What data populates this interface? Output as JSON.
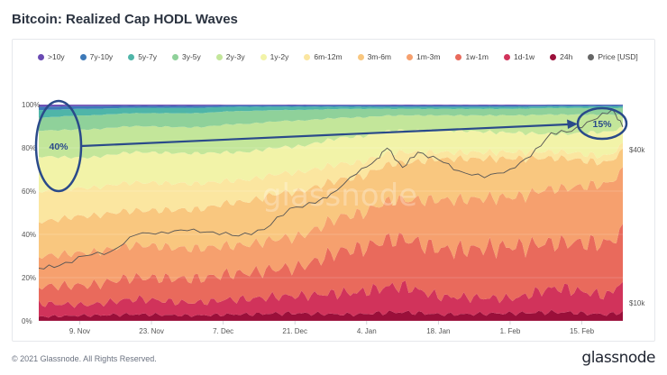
{
  "title": "Bitcoin: Realized Cap HODL Waves",
  "footer": "© 2021 Glassnode. All Rights Reserved.",
  "brand": "glassnode",
  "watermark": "glassnode",
  "legend": [
    {
      "label": ">10y",
      "color": "#6a4ab3"
    },
    {
      "label": "7y-10y",
      "color": "#3d79b8"
    },
    {
      "label": "5y-7y",
      "color": "#4fb5a8"
    },
    {
      "label": "3y-5y",
      "color": "#8fd19a"
    },
    {
      "label": "2y-3y",
      "color": "#c3e69a"
    },
    {
      "label": "1y-2y",
      "color": "#f2f3a8"
    },
    {
      "label": "6m-12m",
      "color": "#fbe6a0"
    },
    {
      "label": "3m-6m",
      "color": "#f9c77f"
    },
    {
      "label": "1m-3m",
      "color": "#f6a06e"
    },
    {
      "label": "1w-1m",
      "color": "#e96a5c"
    },
    {
      "label": "1d-1w",
      "color": "#d1335b"
    },
    {
      "label": "24h",
      "color": "#9b0f3a"
    },
    {
      "label": "Price [USD]",
      "color": "#666666"
    }
  ],
  "annotations": {
    "left_label": "40%",
    "right_label": "15%",
    "color": "#2a4a8a"
  },
  "chart_data": {
    "type": "area",
    "stacked": true,
    "title": "Bitcoin: Realized Cap HODL Waves",
    "x_tick_labels": [
      "9. Nov",
      "23. Nov",
      "7. Dec",
      "21. Dec",
      "4. Jan",
      "18. Jan",
      "1. Feb",
      "15. Feb"
    ],
    "x_range": [
      "2020-11-01",
      "2021-02-23"
    ],
    "y_left_ticks": [
      "0%",
      "20%",
      "40%",
      "60%",
      "80%",
      "100%"
    ],
    "y_left_range": [
      0,
      100
    ],
    "y_right_ticks": [
      "$10k",
      "$40k"
    ],
    "y_right_scale": "log",
    "y_right_range": [
      8500,
      60000
    ],
    "x": [
      "2020-11-01",
      "2020-11-10",
      "2020-11-20",
      "2020-12-01",
      "2020-12-10",
      "2020-12-20",
      "2021-01-01",
      "2021-01-10",
      "2021-01-20",
      "2021-02-01",
      "2021-02-10",
      "2021-02-20",
      "2021-02-23"
    ],
    "series": [
      {
        "name": "24h",
        "values": [
          2,
          2.5,
          3,
          2.5,
          3,
          3.5,
          3,
          4,
          3,
          3.5,
          4,
          3,
          4
        ]
      },
      {
        "name": "1d-1w",
        "values": [
          6,
          5,
          7,
          6,
          7,
          8,
          10,
          12,
          8,
          7,
          11,
          9,
          14
        ]
      },
      {
        "name": "1w-1m",
        "values": [
          8,
          9,
          10,
          11,
          12,
          13,
          20,
          22,
          22,
          24,
          21,
          24,
          23
        ]
      },
      {
        "name": "1m-3m",
        "values": [
          14,
          15,
          15,
          14,
          13,
          14,
          16,
          18,
          23,
          23,
          25,
          27,
          28
        ]
      },
      {
        "name": "3m-6m",
        "values": [
          16,
          17,
          16,
          18,
          20,
          21,
          17,
          17,
          19,
          18,
          14,
          10,
          9
        ]
      },
      {
        "name": "6m-12m",
        "values": [
          14,
          13,
          13,
          12,
          10,
          9,
          7,
          5,
          3,
          3,
          3,
          3,
          3
        ]
      },
      {
        "name": "1y-2y",
        "values": [
          16,
          14,
          14,
          14,
          13,
          12,
          12,
          10,
          10,
          9,
          8,
          11,
          8
        ]
      },
      {
        "name": "2y-3y",
        "values": [
          12,
          13,
          12,
          12,
          13,
          12,
          9,
          7,
          7,
          8,
          9,
          8,
          6
        ]
      },
      {
        "name": "3y-5y",
        "values": [
          6,
          6.5,
          6,
          6.5,
          6,
          5,
          4,
          3,
          3,
          3,
          3,
          3,
          3
        ]
      },
      {
        "name": "5y-7y",
        "values": [
          3.5,
          3,
          2.5,
          2.5,
          2,
          1.5,
          1,
          0.9,
          0.9,
          0.9,
          0.8,
          0.8,
          0.8
        ]
      },
      {
        "name": "7y-10y",
        "values": [
          1.5,
          1.3,
          0.9,
          0.9,
          0.7,
          0.6,
          0.7,
          0.7,
          0.7,
          0.7,
          0.6,
          0.6,
          0.6
        ]
      },
      {
        "name": ">10y",
        "values": [
          1,
          0.7,
          0.6,
          0.6,
          0.3,
          0.4,
          0.3,
          0.4,
          0.4,
          0.4,
          0.2,
          0.2,
          0.2
        ]
      }
    ],
    "price": {
      "name": "Price [USD]",
      "x": [
        "2020-11-01",
        "2020-11-05",
        "2020-11-10",
        "2020-11-15",
        "2020-11-20",
        "2020-11-25",
        "2020-11-30",
        "2020-12-05",
        "2020-12-10",
        "2020-12-15",
        "2020-12-20",
        "2020-12-25",
        "2020-12-28",
        "2021-01-02",
        "2021-01-06",
        "2021-01-08",
        "2021-01-11",
        "2021-01-14",
        "2021-01-18",
        "2021-01-22",
        "2021-01-27",
        "2021-02-01",
        "2021-02-05",
        "2021-02-09",
        "2021-02-13",
        "2021-02-17",
        "2021-02-21",
        "2021-02-23"
      ],
      "values": [
        13700,
        14000,
        15300,
        15900,
        18500,
        19000,
        19200,
        19000,
        18300,
        19400,
        23500,
        24600,
        26800,
        32000,
        36800,
        40500,
        34000,
        39000,
        36500,
        33000,
        31000,
        33500,
        37500,
        46500,
        47100,
        52000,
        57500,
        49000
      ]
    },
    "legend_position": "top",
    "grid": true
  }
}
